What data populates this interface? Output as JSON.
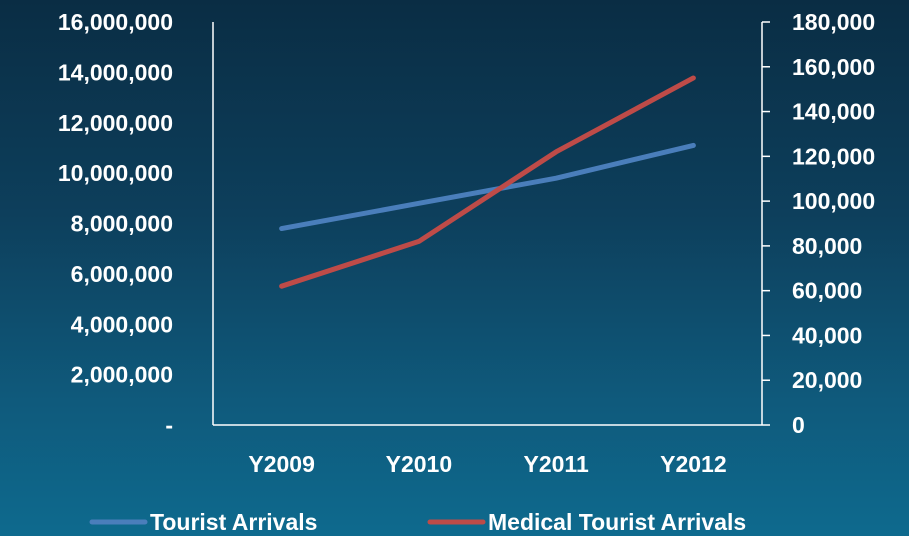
{
  "chart_data": {
    "type": "line",
    "categories": [
      "Y2009",
      "Y2010",
      "Y2011",
      "Y2012"
    ],
    "series": [
      {
        "name": "Tourist Arrivals",
        "axis": "left",
        "color": "#4a7ebb",
        "values": [
          7800000,
          8800000,
          9800000,
          11100000
        ]
      },
      {
        "name": "Medical Tourist Arrivals",
        "axis": "right",
        "color": "#be4b48",
        "values": [
          62000,
          82000,
          122000,
          155000
        ]
      }
    ],
    "left_axis": {
      "min": 0,
      "max": 16000000,
      "step": 2000000,
      "tick_labels": [
        "-",
        "2,000,000",
        "4,000,000",
        "6,000,000",
        "8,000,000",
        "10,000,000",
        "12,000,000",
        "14,000,000",
        "16,000,000"
      ]
    },
    "right_axis": {
      "min": 0,
      "max": 180000,
      "step": 20000,
      "tick_labels": [
        "0",
        "20,000",
        "40,000",
        "60,000",
        "80,000",
        "100,000",
        "120,000",
        "140,000",
        "160,000",
        "180,000"
      ]
    },
    "title": "",
    "xlabel": "",
    "ylabel": "",
    "grid": false,
    "legend": "bottom"
  }
}
